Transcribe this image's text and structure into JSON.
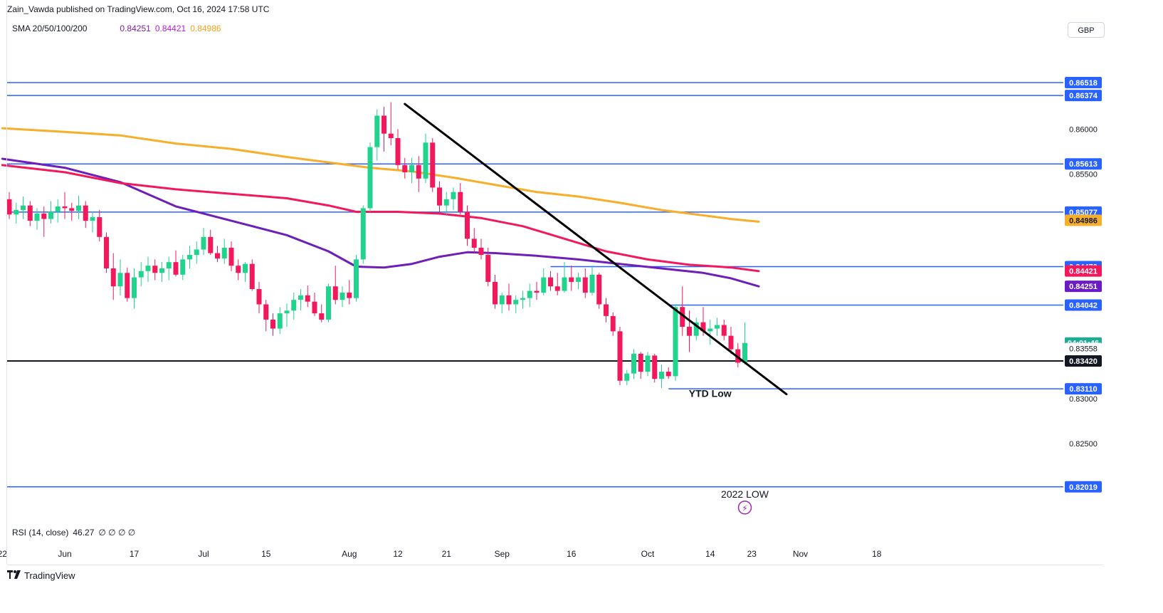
{
  "header": {
    "published_line": "Zain_Vawda published on TradingView.com, Oct 16, 2024 17:58 UTC",
    "currency_button": "GBP"
  },
  "sma_legend": {
    "name": "SMA 20/50/100/200",
    "values": [
      "0.84251",
      "0.84421",
      "0.84986"
    ]
  },
  "rsi_legend": {
    "name": "RSI (14, close)",
    "value": "46.27",
    "placeholders": "∅ ∅ ∅ ∅"
  },
  "footer": {
    "brand": "TradingView"
  },
  "colors": {
    "up": "#22d38d",
    "down": "#f2185c",
    "hline": "#2962ff",
    "sma_purple": "#6d1fb8",
    "sma_pink": "#f2185c",
    "sma_orange": "#f7ae2a",
    "trend": "#000000"
  },
  "chart_data": {
    "type": "candlestick",
    "y_axis": {
      "range": [
        0.8185,
        0.867
      ],
      "ticks": [
        "0.86000",
        "0.85500",
        "0.83000",
        "0.82500"
      ]
    },
    "x_axis": {
      "ticks": [
        {
          "label": "22",
          "bar": -1
        },
        {
          "label": "Jun",
          "bar": 8
        },
        {
          "label": "17",
          "bar": 18
        },
        {
          "label": "Jul",
          "bar": 28
        },
        {
          "label": "15",
          "bar": 37
        },
        {
          "label": "Aug",
          "bar": 49
        },
        {
          "label": "12",
          "bar": 56
        },
        {
          "label": "21",
          "bar": 63
        },
        {
          "label": "Sep",
          "bar": 71
        },
        {
          "label": "16",
          "bar": 81
        },
        {
          "label": "Oct",
          "bar": 92
        },
        {
          "label": "14",
          "bar": 101
        },
        {
          "label": "23",
          "bar": 107
        },
        {
          "label": "Nov",
          "bar": 114
        },
        {
          "label": "18",
          "bar": 125
        }
      ]
    },
    "candles": [
      [
        0.8522,
        0.853,
        0.85,
        0.8505
      ],
      [
        0.8505,
        0.8518,
        0.8495,
        0.851
      ],
      [
        0.851,
        0.8525,
        0.85,
        0.8515
      ],
      [
        0.8515,
        0.852,
        0.8492,
        0.8498
      ],
      [
        0.8498,
        0.8512,
        0.8488,
        0.8506
      ],
      [
        0.8506,
        0.8514,
        0.848,
        0.85
      ],
      [
        0.85,
        0.852,
        0.8495,
        0.8508
      ],
      [
        0.8508,
        0.8522,
        0.8496,
        0.8514
      ],
      [
        0.8514,
        0.853,
        0.85,
        0.8512
      ],
      [
        0.8512,
        0.8518,
        0.8498,
        0.8509
      ],
      [
        0.8509,
        0.8526,
        0.85,
        0.8515
      ],
      [
        0.8515,
        0.852,
        0.849,
        0.8498
      ],
      [
        0.8498,
        0.8508,
        0.8485,
        0.8502
      ],
      [
        0.8502,
        0.851,
        0.8475,
        0.848
      ],
      [
        0.848,
        0.8485,
        0.844,
        0.8445
      ],
      [
        0.8445,
        0.8462,
        0.841,
        0.8425
      ],
      [
        0.8425,
        0.8455,
        0.8415,
        0.844
      ],
      [
        0.844,
        0.8446,
        0.8408,
        0.8412
      ],
      [
        0.8412,
        0.8445,
        0.84,
        0.8435
      ],
      [
        0.8435,
        0.8452,
        0.8425,
        0.8442
      ],
      [
        0.8442,
        0.8458,
        0.843,
        0.8448
      ],
      [
        0.8448,
        0.8455,
        0.8432,
        0.844
      ],
      [
        0.844,
        0.8452,
        0.843,
        0.8445
      ],
      [
        0.8445,
        0.8458,
        0.8432,
        0.8452
      ],
      [
        0.8452,
        0.8465,
        0.8436,
        0.8438
      ],
      [
        0.8438,
        0.846,
        0.8432,
        0.8455
      ],
      [
        0.8455,
        0.847,
        0.8445,
        0.846
      ],
      [
        0.846,
        0.8475,
        0.845,
        0.8466
      ],
      [
        0.8466,
        0.849,
        0.846,
        0.848
      ],
      [
        0.848,
        0.8488,
        0.846,
        0.8462
      ],
      [
        0.8462,
        0.847,
        0.8452,
        0.8456
      ],
      [
        0.8456,
        0.8478,
        0.845,
        0.8468
      ],
      [
        0.8468,
        0.8475,
        0.8442,
        0.8448
      ],
      [
        0.8448,
        0.8455,
        0.8432,
        0.844
      ],
      [
        0.844,
        0.8452,
        0.843,
        0.845
      ],
      [
        0.845,
        0.8455,
        0.842,
        0.8422
      ],
      [
        0.8422,
        0.843,
        0.8395,
        0.8405
      ],
      [
        0.8405,
        0.841,
        0.8375,
        0.8388
      ],
      [
        0.8388,
        0.8395,
        0.837,
        0.8378
      ],
      [
        0.8378,
        0.8402,
        0.8372,
        0.8395
      ],
      [
        0.8395,
        0.8406,
        0.838,
        0.8398
      ],
      [
        0.8398,
        0.8418,
        0.8388,
        0.841
      ],
      [
        0.841,
        0.8422,
        0.8398,
        0.8415
      ],
      [
        0.8415,
        0.8426,
        0.8402,
        0.8408
      ],
      [
        0.8408,
        0.8418,
        0.8392,
        0.8395
      ],
      [
        0.8395,
        0.8405,
        0.8385,
        0.8388
      ],
      [
        0.8388,
        0.8428,
        0.8385,
        0.8425
      ],
      [
        0.8425,
        0.8448,
        0.8405,
        0.841
      ],
      [
        0.841,
        0.8425,
        0.8402,
        0.8418
      ],
      [
        0.8418,
        0.8432,
        0.8405,
        0.8412
      ],
      [
        0.8412,
        0.846,
        0.8408,
        0.8455
      ],
      [
        0.8455,
        0.8515,
        0.845,
        0.8512
      ],
      [
        0.8512,
        0.8585,
        0.8508,
        0.858
      ],
      [
        0.858,
        0.8622,
        0.8565,
        0.8615
      ],
      [
        0.8615,
        0.8625,
        0.8575,
        0.8595
      ],
      [
        0.8595,
        0.863,
        0.8582,
        0.859
      ],
      [
        0.859,
        0.86,
        0.8555,
        0.856
      ],
      [
        0.856,
        0.8568,
        0.8545,
        0.8552
      ],
      [
        0.8552,
        0.8568,
        0.854,
        0.856
      ],
      [
        0.856,
        0.857,
        0.853,
        0.8545
      ],
      [
        0.8545,
        0.8595,
        0.854,
        0.8585
      ],
      [
        0.8585,
        0.859,
        0.853,
        0.8535
      ],
      [
        0.8535,
        0.8542,
        0.8508,
        0.8515
      ],
      [
        0.8515,
        0.853,
        0.8505,
        0.8522
      ],
      [
        0.8522,
        0.8535,
        0.851,
        0.853
      ],
      [
        0.853,
        0.854,
        0.8505,
        0.8508
      ],
      [
        0.8508,
        0.8515,
        0.847,
        0.8478
      ],
      [
        0.8478,
        0.849,
        0.8462,
        0.8468
      ],
      [
        0.8468,
        0.8478,
        0.8455,
        0.846
      ],
      [
        0.846,
        0.8468,
        0.8425,
        0.843
      ],
      [
        0.843,
        0.8438,
        0.84,
        0.8405
      ],
      [
        0.8405,
        0.8418,
        0.8395,
        0.8415
      ],
      [
        0.8415,
        0.8428,
        0.8398,
        0.8405
      ],
      [
        0.8405,
        0.8415,
        0.8395,
        0.841
      ],
      [
        0.841,
        0.842,
        0.84,
        0.8412
      ],
      [
        0.8412,
        0.8428,
        0.8402,
        0.842
      ],
      [
        0.842,
        0.843,
        0.841,
        0.8418
      ],
      [
        0.8418,
        0.8445,
        0.8415,
        0.8435
      ],
      [
        0.8435,
        0.8442,
        0.842,
        0.8425
      ],
      [
        0.8425,
        0.844,
        0.8415,
        0.842
      ],
      [
        0.842,
        0.8452,
        0.8418,
        0.8435
      ],
      [
        0.8435,
        0.8448,
        0.842,
        0.843
      ],
      [
        0.843,
        0.844,
        0.8422,
        0.8435
      ],
      [
        0.8435,
        0.8445,
        0.8412,
        0.8418
      ],
      [
        0.8418,
        0.8448,
        0.8415,
        0.8438
      ],
      [
        0.8438,
        0.844,
        0.84,
        0.8405
      ],
      [
        0.8405,
        0.8412,
        0.8385,
        0.8392
      ],
      [
        0.8392,
        0.8396,
        0.837,
        0.8375
      ],
      [
        0.8375,
        0.838,
        0.8315,
        0.832
      ],
      [
        0.832,
        0.8332,
        0.8315,
        0.8328
      ],
      [
        0.8328,
        0.8355,
        0.8322,
        0.835
      ],
      [
        0.835,
        0.8352,
        0.8322,
        0.833
      ],
      [
        0.833,
        0.8352,
        0.8325,
        0.8348
      ],
      [
        0.8348,
        0.835,
        0.8318,
        0.8322
      ],
      [
        0.8322,
        0.8338,
        0.8312,
        0.833
      ],
      [
        0.833,
        0.8335,
        0.8322,
        0.8325
      ],
      [
        0.8325,
        0.8405,
        0.832,
        0.8402
      ],
      [
        0.8402,
        0.8425,
        0.837,
        0.838
      ],
      [
        0.838,
        0.8398,
        0.8352,
        0.837
      ],
      [
        0.837,
        0.839,
        0.8365,
        0.8385
      ],
      [
        0.8385,
        0.8402,
        0.837,
        0.8375
      ],
      [
        0.8375,
        0.8388,
        0.836,
        0.8378
      ],
      [
        0.8378,
        0.839,
        0.837,
        0.8382
      ],
      [
        0.8382,
        0.8388,
        0.8365,
        0.837
      ],
      [
        0.837,
        0.838,
        0.835,
        0.8355
      ],
      [
        0.8355,
        0.8362,
        0.8335,
        0.834
      ],
      [
        0.834,
        0.8385,
        0.8338,
        0.8362
      ]
    ],
    "sma_lines": [
      {
        "name": "SMA 50",
        "color": "purple",
        "value": "0.84251",
        "end_bar": 108,
        "points": [
          [
            -1,
            0.8567
          ],
          [
            8,
            0.8557
          ],
          [
            16,
            0.8541
          ],
          [
            24,
            0.8514
          ],
          [
            32,
            0.8498
          ],
          [
            40,
            0.8482
          ],
          [
            46,
            0.8464
          ],
          [
            50,
            0.8447
          ],
          [
            54,
            0.8446
          ],
          [
            58,
            0.845
          ],
          [
            62,
            0.8458
          ],
          [
            66,
            0.8463
          ],
          [
            70,
            0.8462
          ],
          [
            76,
            0.8459
          ],
          [
            82,
            0.8455
          ],
          [
            88,
            0.845
          ],
          [
            94,
            0.8445
          ],
          [
            100,
            0.844
          ],
          [
            104,
            0.8434
          ],
          [
            108,
            0.8425
          ]
        ]
      },
      {
        "name": "SMA 100",
        "color": "pink",
        "value": "0.84421",
        "end_bar": 108,
        "points": [
          [
            -1,
            0.856
          ],
          [
            8,
            0.8552
          ],
          [
            16,
            0.854
          ],
          [
            24,
            0.8533
          ],
          [
            32,
            0.8528
          ],
          [
            40,
            0.8523
          ],
          [
            46,
            0.8515
          ],
          [
            50,
            0.8508
          ],
          [
            56,
            0.8508
          ],
          [
            62,
            0.8506
          ],
          [
            68,
            0.8501
          ],
          [
            74,
            0.8492
          ],
          [
            80,
            0.8478
          ],
          [
            86,
            0.8464
          ],
          [
            92,
            0.8455
          ],
          [
            98,
            0.8449
          ],
          [
            104,
            0.8446
          ],
          [
            108,
            0.8442
          ]
        ]
      },
      {
        "name": "SMA 200",
        "color": "orange",
        "value": "0.84986",
        "end_bar": 108,
        "points": [
          [
            -1,
            0.8601
          ],
          [
            8,
            0.8597
          ],
          [
            16,
            0.8593
          ],
          [
            24,
            0.8584
          ],
          [
            32,
            0.8578
          ],
          [
            40,
            0.8569
          ],
          [
            46,
            0.8563
          ],
          [
            52,
            0.8557
          ],
          [
            58,
            0.8553
          ],
          [
            64,
            0.8546
          ],
          [
            70,
            0.8538
          ],
          [
            76,
            0.853
          ],
          [
            82,
            0.8525
          ],
          [
            88,
            0.8518
          ],
          [
            94,
            0.851
          ],
          [
            100,
            0.8504
          ],
          [
            104,
            0.85
          ],
          [
            108,
            0.8497
          ]
        ]
      }
    ],
    "horizontal_levels": [
      {
        "value": 0.86518,
        "label": "0.86518",
        "style": "blue"
      },
      {
        "value": 0.86374,
        "label": "0.86374",
        "style": "blue"
      },
      {
        "value": 0.85613,
        "label": "0.85613",
        "style": "blue"
      },
      {
        "value": 0.85077,
        "label": "0.85077",
        "style": "blue"
      },
      {
        "value": 0.8447,
        "label": "0.84470",
        "style": "blue",
        "from_bar": 78
      },
      {
        "value": 0.84042,
        "label": "0.84042",
        "style": "blue",
        "from_bar": 95
      },
      {
        "value": 0.8311,
        "label": "0.83110",
        "style": "blue",
        "from_bar": 95
      },
      {
        "value": 0.82019,
        "label": "0.82019",
        "style": "blue"
      },
      {
        "value": 0.8342,
        "label": "0.83420",
        "style": "black"
      }
    ],
    "price_tags": [
      {
        "value": 0.84986,
        "label": "0.84986",
        "color": "orange"
      },
      {
        "value": 0.84421,
        "label": "0.84421",
        "color": "pink"
      },
      {
        "value": 0.84251,
        "label": "0.84251",
        "color": "purple"
      },
      {
        "value": 0.8362,
        "label": "04:01:46",
        "color": "green"
      },
      {
        "value": 0.83558,
        "label": "0.83558",
        "color": "plain"
      }
    ],
    "trendline": {
      "from": [
        57,
        0.8628
      ],
      "to": [
        112,
        0.8305
      ]
    },
    "annotations": [
      {
        "text": "YTD Low",
        "bar": 101,
        "value": 0.8302
      },
      {
        "text": "2022 LOW",
        "bar": 106,
        "value": 0.819
      }
    ],
    "event_marker": {
      "symbol": "⚡",
      "bar": 106,
      "value": 0.8182
    }
  }
}
